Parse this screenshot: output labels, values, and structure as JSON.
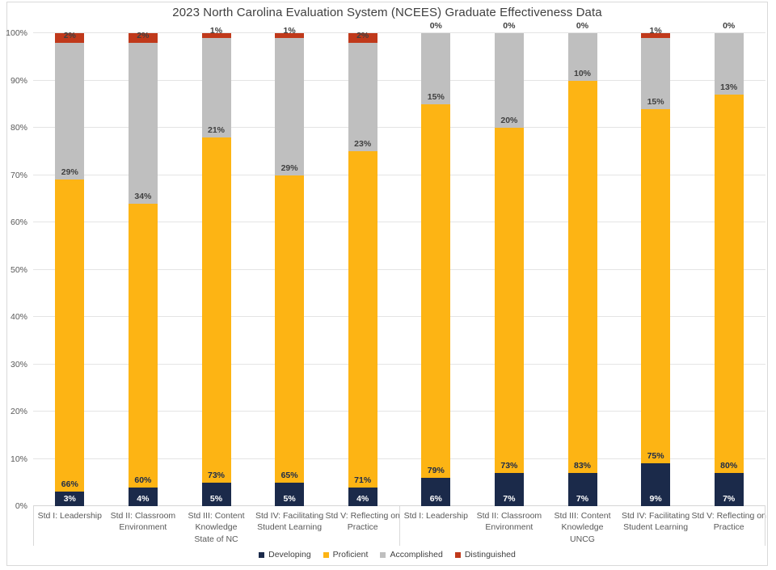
{
  "title": "2023 North Carolina Evaluation System (NCEES) Graduate Effectiveness Data",
  "chart_data": {
    "type": "bar",
    "stacked": true,
    "unit": "%",
    "orientation": "vertical",
    "grid": true,
    "legend_position": "bottom",
    "data_labels": true,
    "ylim": [
      0,
      100
    ],
    "yticks": [
      "0%",
      "10%",
      "20%",
      "30%",
      "40%",
      "50%",
      "60%",
      "70%",
      "80%",
      "90%",
      "100%"
    ],
    "categories": [
      "Std I: Leadership",
      "Std II: Classroom Environment",
      "Std III: Content Knowledge",
      "Std IV: Facilitating Student Learning",
      "Std V: Reflecting on Practice",
      "Std I: Leadership",
      "Std II: Classroom Environment",
      "Std III: Content Knowledge",
      "Std IV: Facilitating Student Learning",
      "Std V: Reflecting on Practice"
    ],
    "groups": [
      {
        "label": "State of NC",
        "start": 0,
        "end": 5
      },
      {
        "label": "UNCG",
        "start": 5,
        "end": 10
      }
    ],
    "series": [
      {
        "name": "Developing",
        "color": "#1b2a4a",
        "label_color": "#ffffff",
        "values": [
          3,
          4,
          5,
          5,
          4,
          6,
          7,
          7,
          9,
          7
        ]
      },
      {
        "name": "Proficient",
        "color": "#fdb414",
        "label_color": "#1b2a4a",
        "values": [
          66,
          60,
          73,
          65,
          71,
          79,
          73,
          83,
          75,
          80
        ]
      },
      {
        "name": "Accomplished",
        "color": "#bfbfbf",
        "label_color": "#404040",
        "values": [
          29,
          34,
          21,
          29,
          23,
          15,
          20,
          10,
          15,
          13
        ]
      },
      {
        "name": "Distinguished",
        "color": "#c0391b",
        "label_color": "#404040",
        "values": [
          2,
          2,
          1,
          1,
          2,
          0,
          0,
          0,
          1,
          0
        ]
      }
    ]
  }
}
